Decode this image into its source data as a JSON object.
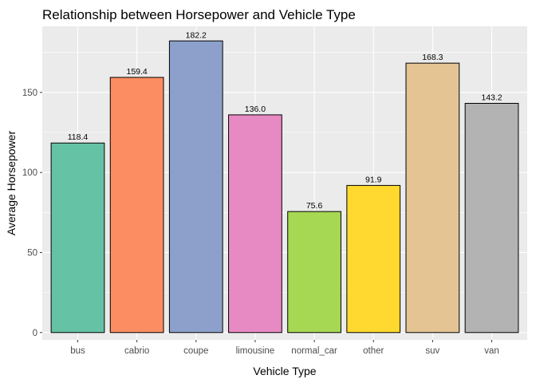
{
  "chart_data": {
    "type": "bar",
    "title": "Relationship between Horsepower and Vehicle Type",
    "xlabel": "Vehicle Type",
    "ylabel": "Average Horsepower",
    "categories": [
      "bus",
      "cabrio",
      "coupe",
      "limousine",
      "normal_car",
      "other",
      "suv",
      "van"
    ],
    "values": [
      118.4,
      159.4,
      182.2,
      136.0,
      75.6,
      91.9,
      168.3,
      143.2
    ],
    "value_labels": [
      "118.4",
      "159.4",
      "182.2",
      "136.0",
      "75.6",
      "91.9",
      "168.3",
      "143.2"
    ],
    "colors": [
      "#66c2a5",
      "#fc8d62",
      "#8da0cb",
      "#e78ac3",
      "#a6d854",
      "#ffd92f",
      "#e5c494",
      "#b3b3b3"
    ],
    "yticks": [
      0,
      50,
      100,
      150
    ],
    "ylim": [
      -4.6,
      191.3
    ],
    "grid": true,
    "panel_background": "#ebebeb",
    "legend": "none"
  }
}
